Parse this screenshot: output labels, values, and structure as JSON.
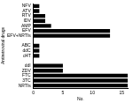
{
  "chart_data": {
    "type": "bar",
    "orientation": "horizontal",
    "x_label": "No.",
    "y_label": "Antiretroviral drugs",
    "categories": [
      "NFV",
      "ATV",
      "RTV",
      "IDV",
      "AMP",
      "EFV",
      "EFV+NRTIs",
      null,
      "ABC",
      "ddC",
      "d4T",
      null,
      "ddI",
      "ZDV",
      "FTC",
      "3TC",
      "NRTIs"
    ],
    "values": [
      1,
      1,
      2,
      2,
      3,
      13,
      13,
      null,
      1,
      1,
      1,
      null,
      5,
      5,
      16,
      16,
      16
    ],
    "color": "#000000",
    "xlim": [
      0,
      16
    ],
    "xticks": [
      0,
      5,
      10,
      15
    ],
    "grid": false
  }
}
